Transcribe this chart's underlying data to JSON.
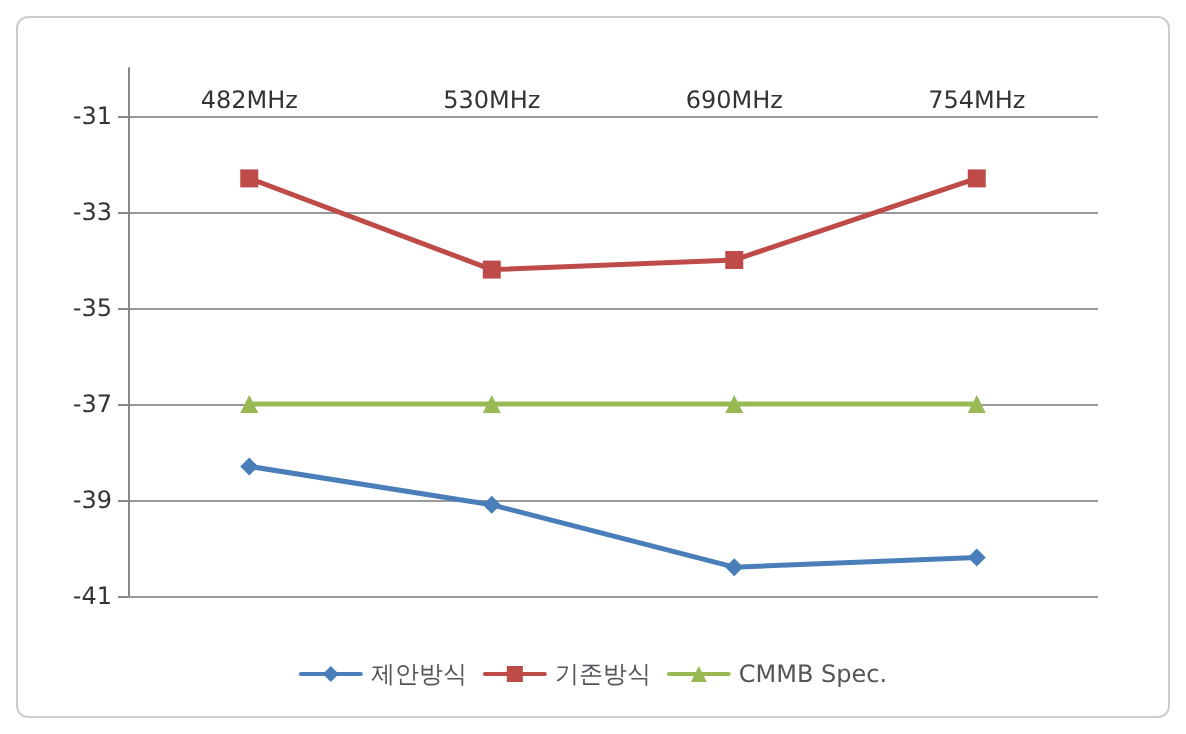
{
  "chart_data": {
    "type": "line",
    "categories": [
      "482MHz",
      "530MHz",
      "690MHz",
      "754MHz"
    ],
    "series": [
      {
        "name": "제안방식",
        "color": "#4a7ebb",
        "marker": "diamond",
        "values": [
          -38.3,
          -39.1,
          -40.4,
          -40.2
        ]
      },
      {
        "name": "기존방식",
        "color": "#be4b48",
        "marker": "square",
        "values": [
          -32.3,
          -34.2,
          -34.0,
          -32.3
        ]
      },
      {
        "name": "CMMB Spec.",
        "color": "#98b954",
        "marker": "triangle",
        "values": [
          -37,
          -37,
          -37,
          -37
        ]
      }
    ],
    "ylim": [
      -41,
      -30
    ],
    "yticks": [
      -41,
      -39,
      -37,
      -35,
      -33,
      -31
    ],
    "grid": "y",
    "legend": "bottom",
    "line_style": "solid"
  }
}
